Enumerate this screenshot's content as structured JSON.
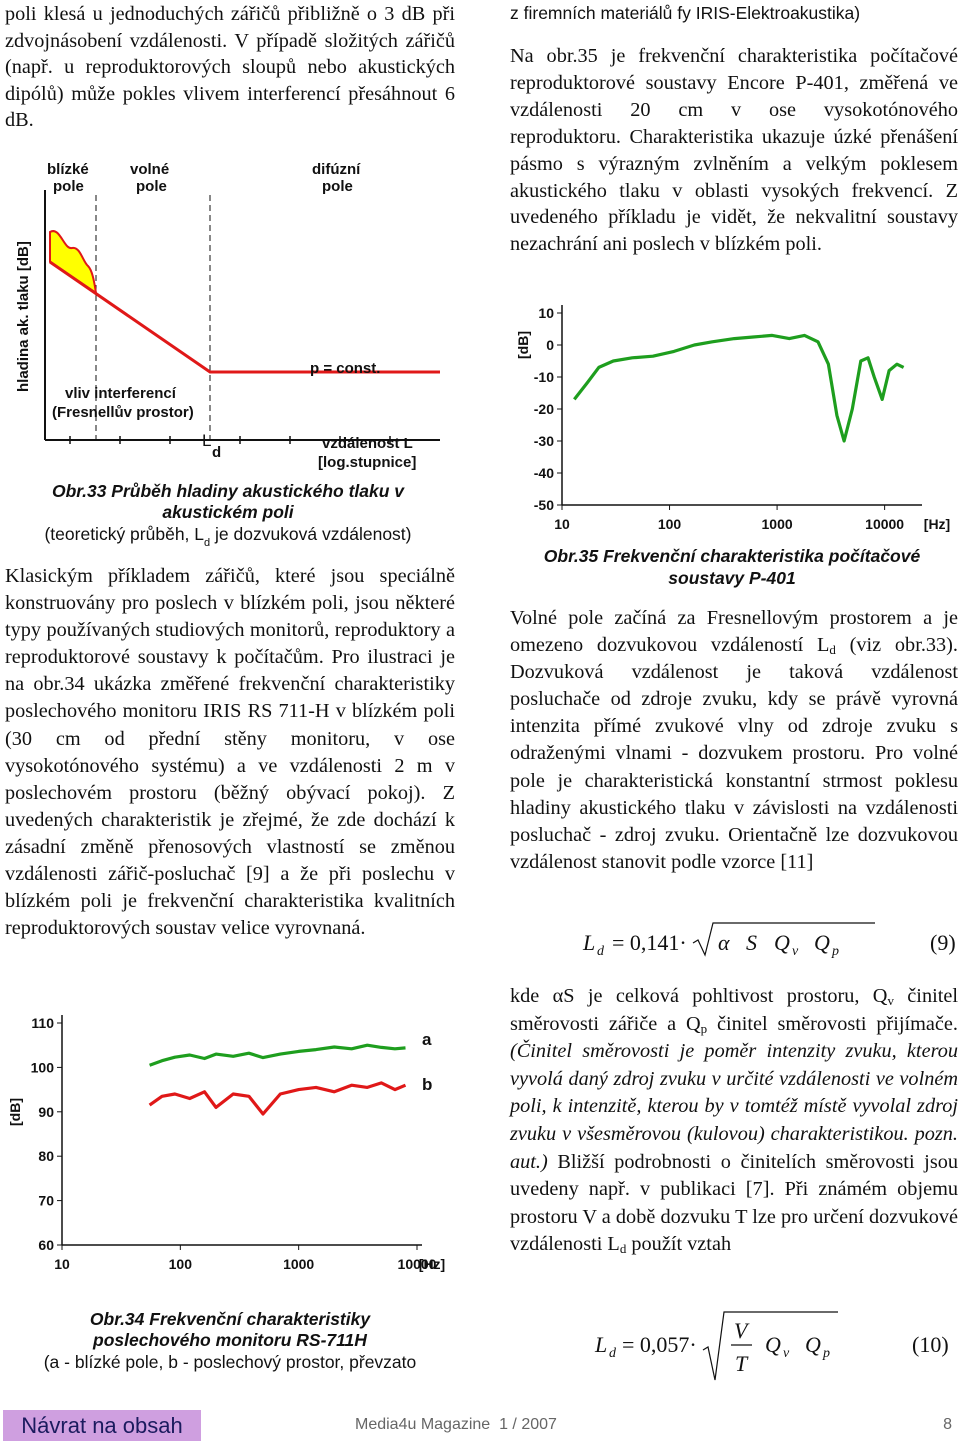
{
  "left": {
    "para1": [
      {
        "t": "poli klesá u jednoduchých zářičů přibližně o 3 dB při zdvojnásobení vzdálenosti. V případě složitých zářičů (např. u reproduktorových sloupů nebo akustických dipólů) může pokles vlivem interferencí přesáhnout 6 dB."
      }
    ],
    "para2": [
      {
        "t": "Klasickým příkladem zářičů, které jsou speciálně konstruovány pro poslech v blízkém poli, jsou některé typy používaných studiových monitorů, reproduktory a reproduktorové soustavy k počítačům. Pro ilustraci je na obr.34 ukázka změřené frekvenční charakteristiky poslechového monitoru IRIS RS 711-H v blízkém poli (30 cm od přední stěny monitoru, v ose vysokotónového systému) a ve vzdálenosti 2 m v poslechovém prostoru (běžný obývací pokoj). Z uvedených charakteristik je zřejmé, že zde dochází k zásadní změně přenosových vlastností se změnou vzdálenosti zářič-posluchač [9] a že při poslechu v blízkém poli je frekvenční charakteristika kvalitních reproduktorových soustav velice vyrovnaná."
      }
    ]
  },
  "fig33": {
    "near": [
      "blízké",
      "pole"
    ],
    "free": [
      "volné",
      "pole"
    ],
    "diffuse": [
      "difúzní",
      "pole"
    ],
    "ylabel": "hladina ak. tlaku [dB]",
    "interference": [
      "vliv interferencí",
      "(Fresnellův prostor)"
    ],
    "const": "p = const.",
    "ld": [
      "L",
      "d"
    ],
    "xlabel": [
      "vzdálenost L",
      "[log.stupnice]"
    ],
    "caption": [
      "Obr.33 Průběh hladiny akustického tlaku v",
      "akustickém poli"
    ],
    "note": [
      {
        "t": "(teoretický průběh, L"
      },
      {
        "t": "d",
        "s": "sub"
      },
      {
        "t": " je dozvuková vzdálenost)"
      }
    ]
  },
  "fig34": {
    "chart_data": {
      "type": "line",
      "ylabel": "[dB]",
      "xunit": "[Hz]",
      "xlog": true,
      "xlim": [
        10,
        10000
      ],
      "xticks": [
        10,
        100,
        1000,
        10000
      ],
      "ylim": [
        60,
        110
      ],
      "yticks": [
        60,
        70,
        80,
        90,
        100,
        110
      ],
      "x": [
        55,
        70,
        90,
        120,
        160,
        200,
        280,
        380,
        500,
        700,
        1000,
        1400,
        2000,
        2800,
        3800,
        5000,
        6500,
        8000
      ],
      "series": [
        {
          "name": "a",
          "color": "#1e9e1e",
          "values": [
            100.5,
            101.5,
            102.3,
            102.8,
            102,
            103,
            102.5,
            103.2,
            102.2,
            103,
            103.6,
            104,
            104.6,
            104.2,
            105,
            104.5,
            104.2,
            104.4
          ]
        },
        {
          "name": "b",
          "color": "#e01818",
          "values": [
            91.5,
            93.5,
            94,
            93,
            94.5,
            91,
            94,
            93.5,
            89.5,
            94,
            95,
            95.5,
            94.5,
            96,
            95.5,
            96.5,
            95,
            96
          ]
        }
      ]
    },
    "caption": [
      "Obr.34 Frekvenční charakteristiky",
      "poslechového monitoru RS-711H"
    ],
    "note": [
      "(a - blízké pole, b - poslechový prostor, převzato",
      "z firemních materiálů fy IRIS-Elektroakustika)"
    ]
  },
  "right": {
    "para1": [
      {
        "t": "Na obr.35 je frekvenční charakteristika počítačové reproduktorové soustavy Encore P-401, změřená ve vzdálenosti 20 cm v ose vysokotónového reproduktoru. Charakteristika ukazuje úzké přenášení pásmo s výrazným zvlněním a velkým poklesem akustického tlaku v oblasti vysokých frekvencí. Z uvedeného příkladu je vidět, že nekvalitní soustavy nezachrání ani poslech v blízkém poli."
      }
    ],
    "para2": [
      {
        "t": "Volné pole začíná za Fresnellovým prostorem a je omezeno dozvukovou vzdáleností L"
      },
      {
        "t": "d",
        "s": "sub"
      },
      {
        "t": " (viz obr.33). Dozvuková vzdálenost je taková vzdálenost posluchače od zdroje zvuku, kdy se právě vyrovná intenzita přímé zvukové vlny od zdroje zvuku s odraženými vlnami - dozvukem prostoru. Pro volné pole je charakteristická konstantní strmost poklesu hladiny akustického tlaku v závislosti na vzdálenosti posluchač - zdroj zvuku. Orientačně lze dozvukovou vzdálenost stanovit podle vzorce [11]"
      }
    ],
    "para3": [
      {
        "t": "kde αS je celková pohltivost prostoru, Q"
      },
      {
        "t": "v",
        "s": "sub"
      },
      {
        "t": " činitel směrovosti zářiče a Q"
      },
      {
        "t": "p",
        "s": "sub"
      },
      {
        "t": " činitel směrovosti přijímače. "
      },
      {
        "t": "(Činitel směrovosti je poměr intenzity zvuku, kterou vyvolá daný zdroj zvuku v určité vzdálenosti ve volném poli, k intenzitě, kterou by v tomtéž místě vyvolal zdroj zvuku v všesměrovou (kulovou) charakteristikou. pozn. aut.)",
        "s": "i"
      },
      {
        "t": " Bližší podrobnosti o činitelích směrovosti jsou uvedeny např. v publikaci [7]. Při známém objemu prostoru V a době dozvuku T lze pro určení dozvukové vzdálenosti L"
      },
      {
        "t": "d",
        "s": "sub"
      },
      {
        "t": " použít vztah"
      }
    ]
  },
  "fig35": {
    "chart_data": {
      "type": "line",
      "ylabel": "[dB]",
      "xunit": "[Hz]",
      "xlog": true,
      "xlim": [
        10,
        20000
      ],
      "xticks": [
        10,
        100,
        1000,
        10000
      ],
      "ylim": [
        -50,
        10
      ],
      "yticks": [
        10,
        0,
        -10,
        -20,
        -30,
        -40,
        -50
      ],
      "x": [
        13,
        17,
        22,
        30,
        45,
        70,
        110,
        170,
        250,
        400,
        600,
        900,
        1300,
        1800,
        2400,
        3000,
        3600,
        4200,
        5000,
        6000,
        7000,
        8000,
        9500,
        11000,
        13000,
        15000
      ],
      "series": [
        {
          "name": "P-401",
          "color": "#1e9e1e",
          "values": [
            -17,
            -12,
            -7,
            -5,
            -4,
            -3.5,
            -2,
            0,
            1,
            2,
            2.5,
            3,
            2,
            3,
            1,
            -6,
            -22,
            -30,
            -20,
            -5,
            -4,
            -10,
            -17,
            -8,
            -6,
            -7
          ]
        }
      ]
    },
    "caption": [
      "Obr.35 Frekvenční charakteristika počítačové",
      "soustavy P-401"
    ]
  },
  "eq9": {
    "L": "L",
    "Lsub": "d",
    "coef": "= 0,141·",
    "alpha": "α",
    "S": "S",
    "Q1": "Q",
    "Q1sub": "v",
    "Q2": "Q",
    "Q2sub": "p",
    "number": "(9)"
  },
  "eq10": {
    "L": "L",
    "Lsub": "d",
    "coef": "= 0,057·",
    "V": "V",
    "T": "T",
    "Q1": "Q",
    "Q1sub": "v",
    "Q2": "Q",
    "Q2sub": "p",
    "number": "(10)"
  },
  "footer": {
    "link": "Návrat na obsah",
    "magazine": "Media4u Magazine  1 / 2007",
    "page": "8"
  }
}
